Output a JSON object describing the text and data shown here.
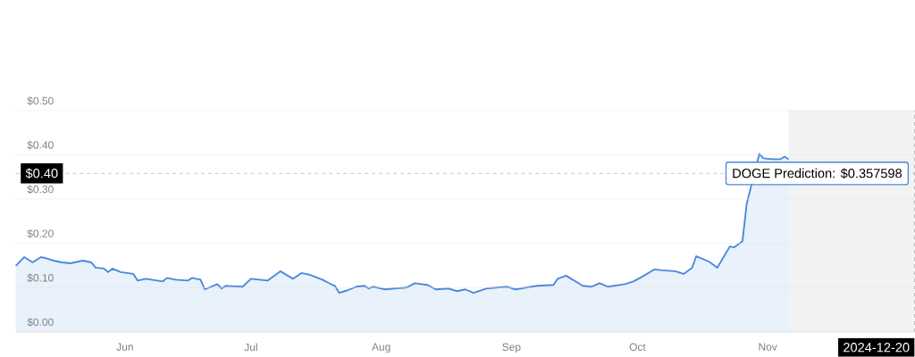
{
  "chart_data": {
    "type": "area",
    "color": "#4a88da",
    "x": [
      "2024-05-20",
      "2024-05-22",
      "2024-05-24",
      "2024-05-26",
      "2024-05-27",
      "2024-05-29",
      "2024-05-31",
      "2024-06-02",
      "2024-06-05",
      "2024-06-07",
      "2024-06-08",
      "2024-06-10",
      "2024-06-11",
      "2024-06-12",
      "2024-06-14",
      "2024-06-17",
      "2024-06-18",
      "2024-06-20",
      "2024-06-24",
      "2024-06-25",
      "2024-06-27",
      "2024-06-30",
      "2024-07-01",
      "2024-07-03",
      "2024-07-04",
      "2024-07-07",
      "2024-07-08",
      "2024-07-09",
      "2024-07-13",
      "2024-07-15",
      "2024-07-19",
      "2024-07-22",
      "2024-07-25",
      "2024-07-27",
      "2024-07-29",
      "2024-08-01",
      "2024-08-03",
      "2024-08-04",
      "2024-08-05",
      "2024-08-07",
      "2024-08-09",
      "2024-08-11",
      "2024-08-12",
      "2024-08-13",
      "2024-08-16",
      "2024-08-18",
      "2024-08-21",
      "2024-08-23",
      "2024-08-26",
      "2024-08-28",
      "2024-08-31",
      "2024-09-02",
      "2024-09-04",
      "2024-09-06",
      "2024-09-09",
      "2024-09-14",
      "2024-09-16",
      "2024-09-21",
      "2024-09-25",
      "2024-09-26",
      "2024-09-28",
      "2024-10-02",
      "2024-10-04",
      "2024-10-06",
      "2024-10-08",
      "2024-10-12",
      "2024-10-14",
      "2024-10-16",
      "2024-10-19",
      "2024-10-21",
      "2024-10-24",
      "2024-10-26",
      "2024-10-28",
      "2024-10-29",
      "2024-11-01",
      "2024-11-03",
      "2024-11-04",
      "2024-11-06",
      "2024-11-07",
      "2024-11-09",
      "2024-11-10",
      "2024-11-11",
      "2024-11-13",
      "2024-11-14",
      "2024-11-16",
      "2024-11-18",
      "2024-11-19",
      "2024-11-20"
    ],
    "values": [
      0.149,
      0.169,
      0.157,
      0.169,
      0.167,
      0.161,
      0.157,
      0.155,
      0.161,
      0.157,
      0.145,
      0.143,
      0.135,
      0.143,
      0.135,
      0.131,
      0.116,
      0.12,
      0.114,
      0.122,
      0.118,
      0.116,
      0.122,
      0.118,
      0.096,
      0.108,
      0.098,
      0.104,
      0.102,
      0.12,
      0.116,
      0.137,
      0.12,
      0.133,
      0.129,
      0.118,
      0.108,
      0.104,
      0.088,
      0.094,
      0.102,
      0.104,
      0.098,
      0.102,
      0.096,
      0.098,
      0.1,
      0.11,
      0.106,
      0.096,
      0.098,
      0.092,
      0.096,
      0.088,
      0.098,
      0.102,
      0.096,
      0.104,
      0.106,
      0.12,
      0.127,
      0.104,
      0.102,
      0.11,
      0.102,
      0.108,
      0.114,
      0.124,
      0.141,
      0.139,
      0.137,
      0.131,
      0.145,
      0.171,
      0.159,
      0.145,
      0.161,
      0.193,
      0.191,
      0.205,
      0.289,
      null,
      0.402,
      0.392,
      0.39,
      0.39,
      0.396,
      0.39
    ],
    "xlim": [
      "2024-05-20",
      "2024-12-20"
    ],
    "xticks": [
      {
        "value": "2024-06-15",
        "label": "Jun"
      },
      {
        "value": "2024-07-15",
        "label": "Jul"
      },
      {
        "value": "2024-08-15",
        "label": "Aug"
      },
      {
        "value": "2024-09-15",
        "label": "Sep"
      },
      {
        "value": "2024-10-15",
        "label": "Oct"
      },
      {
        "value": "2024-11-15",
        "label": "Nov"
      }
    ],
    "ylim": [
      0,
      0.5
    ],
    "yticks": [
      {
        "value": 0,
        "label": "$0.00"
      },
      {
        "value": 0.1,
        "label": "$0.10"
      },
      {
        "value": 0.2,
        "label": "$0.20"
      },
      {
        "value": 0.3,
        "label": "$0.30"
      },
      {
        "value": 0.4,
        "label": "$0.40"
      },
      {
        "value": 0.5,
        "label": "$0.50"
      }
    ],
    "grid": "y",
    "bands": [
      {
        "axis": "x",
        "from": "2024-11-20",
        "to": "2024-12-20",
        "color": "#f2f2f2"
      }
    ],
    "ref_lines": [
      {
        "axis": "y",
        "value": 0.358,
        "line_style": "dashed"
      },
      {
        "axis": "x",
        "value": "2024-12-20",
        "label": "2024-12-20",
        "line_style": "dashed"
      }
    ],
    "annotations": [
      "$0.40",
      {
        "text": "DOGE Prediction: $0.357598",
        "x": "2024-12-20",
        "y": 0.358
      }
    ]
  }
}
